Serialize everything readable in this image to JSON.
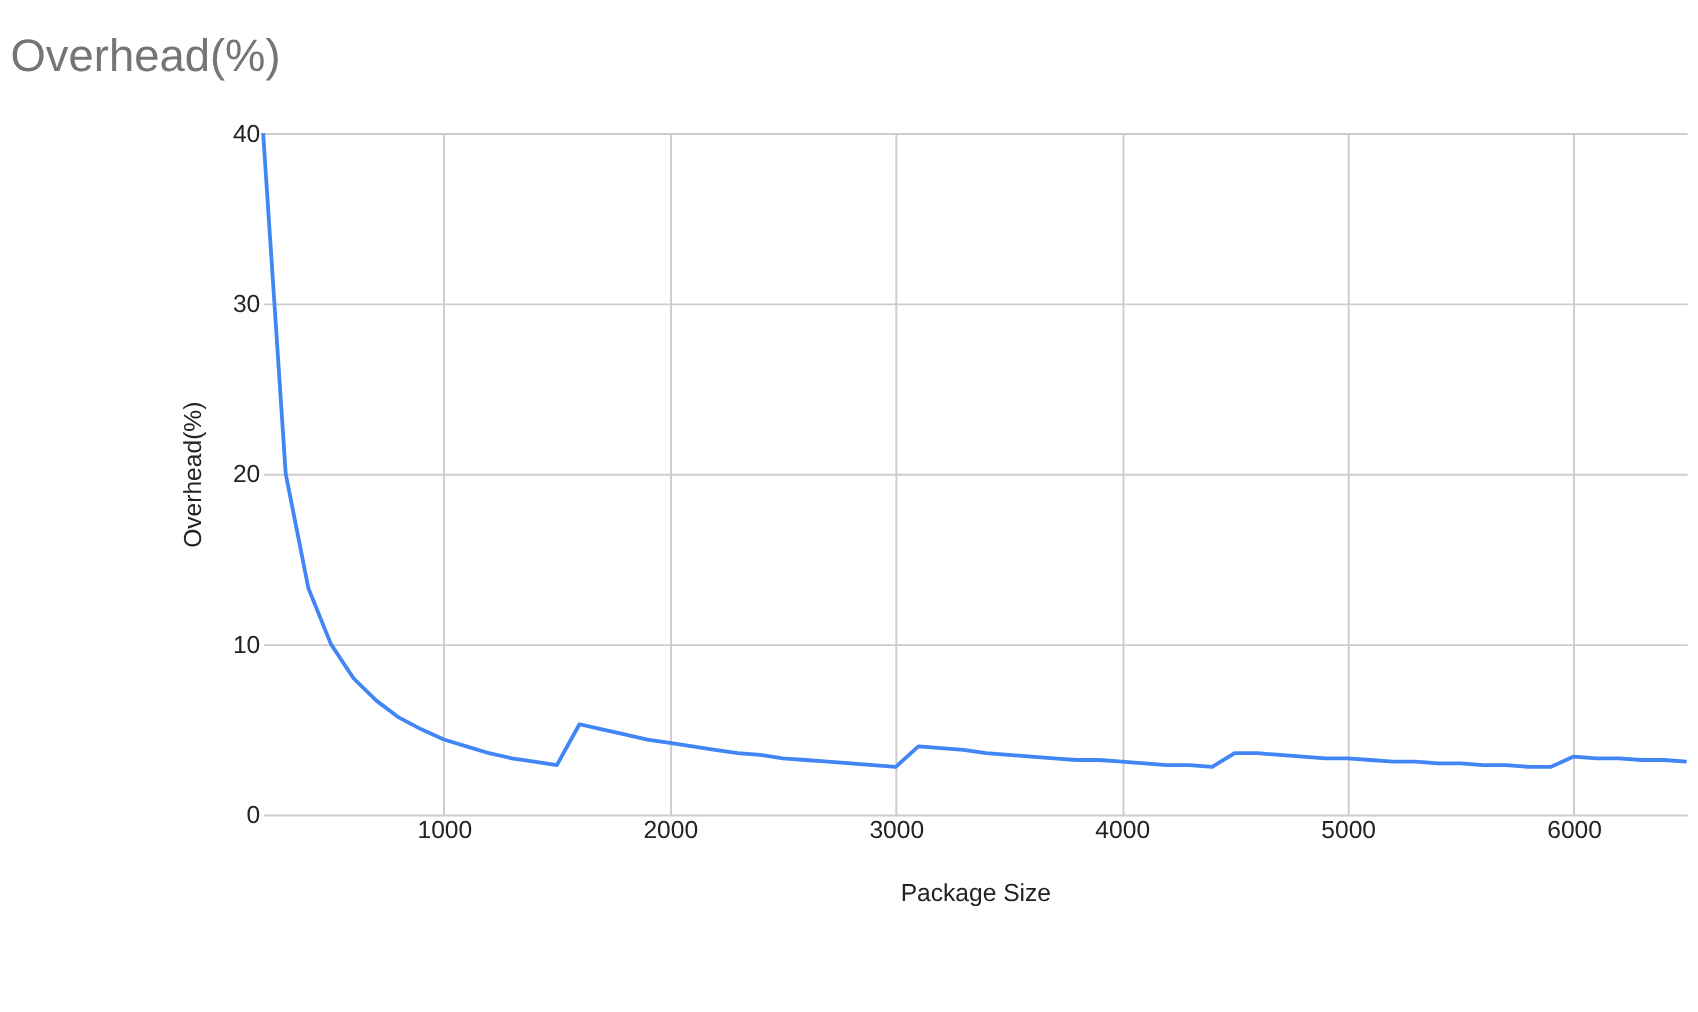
{
  "chart_data": {
    "type": "line",
    "title": "Overhead(%)",
    "xlabel": "Package Size",
    "ylabel": "Overhead(%)",
    "x": [
      200,
      300,
      400,
      500,
      600,
      700,
      800,
      900,
      1000,
      1100,
      1200,
      1300,
      1400,
      1500,
      1600,
      1700,
      1800,
      1900,
      2000,
      2100,
      2200,
      2300,
      2400,
      2500,
      2600,
      2700,
      2800,
      2900,
      3000,
      3100,
      3200,
      3300,
      3400,
      3500,
      3600,
      3700,
      3800,
      3900,
      4000,
      4100,
      4200,
      4300,
      4400,
      4500,
      4600,
      4700,
      4800,
      4900,
      5000,
      5100,
      5200,
      5300,
      5400,
      5500,
      5600,
      5700,
      5800,
      5900,
      6000,
      6100,
      6200,
      6300,
      6400,
      6500
    ],
    "series": [
      {
        "color": "#4285f4",
        "values": [
          40,
          20,
          13.3,
          10,
          8,
          6.7,
          5.7,
          5,
          4.4,
          4,
          3.6,
          3.3,
          3.1,
          2.9,
          5.3,
          5,
          4.7,
          4.4,
          4.2,
          4,
          3.8,
          3.6,
          3.5,
          3.3,
          3.2,
          3.1,
          3,
          2.9,
          2.8,
          4,
          3.9,
          3.8,
          3.6,
          3.5,
          3.4,
          3.3,
          3.2,
          3.2,
          3.1,
          3,
          2.9,
          2.9,
          2.8,
          3.6,
          3.6,
          3.5,
          3.4,
          3.3,
          3.3,
          3.2,
          3.1,
          3.1,
          3,
          3,
          2.9,
          2.9,
          2.8,
          2.8,
          3.4,
          3.3,
          3.3,
          3.2,
          3.2,
          3.1
        ]
      }
    ],
    "xlim": [
      200,
      6500
    ],
    "xticks": [
      1000,
      2000,
      3000,
      4000,
      5000,
      6000
    ],
    "ylim": [
      0,
      40
    ],
    "yticks": [
      0,
      10,
      20,
      30,
      40
    ],
    "grid": true,
    "marker": "none",
    "line_style": "solid"
  }
}
